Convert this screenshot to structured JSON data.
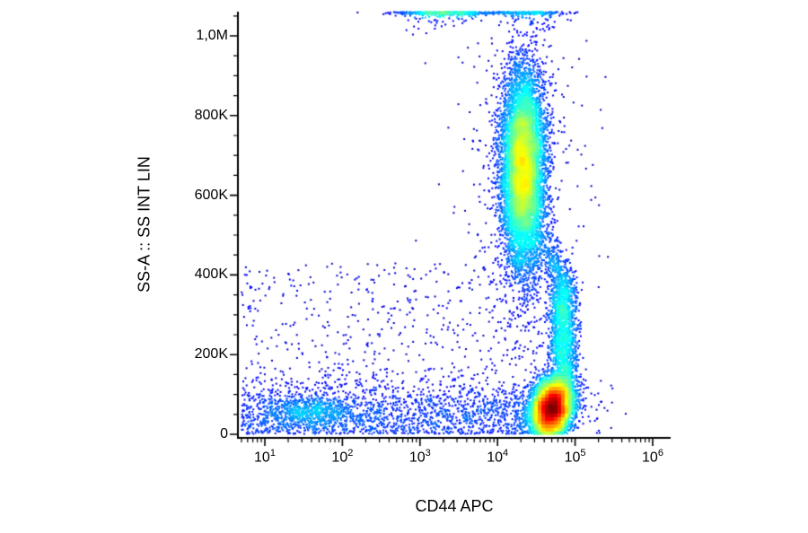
{
  "chart_data": {
    "type": "scatter",
    "subtype": "flow-cytometry-pseudocolor-density",
    "title": "",
    "xlabel": "CD44 APC",
    "ylabel": "SS-A :: SS INT LIN",
    "x_scale": "log",
    "x_tick_base": "10",
    "x_tick_exponents": [
      1,
      2,
      3,
      4,
      5,
      6
    ],
    "x_range_log10": [
      0.66,
      6.18
    ],
    "y_scale": "linear",
    "y_ticks": [
      {
        "label": "0",
        "value": 0
      },
      {
        "label": "200K",
        "value": 200000
      },
      {
        "label": "400K",
        "value": 400000
      },
      {
        "label": "600K",
        "value": 600000
      },
      {
        "label": "800K",
        "value": 800000
      },
      {
        "label": "1,0M",
        "value": 1000000
      }
    ],
    "y_minor_tick_step": 50000,
    "y_range": [
      0,
      1065000
    ],
    "grid": false,
    "legend": false,
    "colormap": "jet",
    "axis_color": "#000000",
    "background_color": "#ffffff",
    "seed": 20240601,
    "populations": [
      {
        "name": "ss-high-cd44-mid-main",
        "n": 9000,
        "x_log_mean": 4.33,
        "x_log_sd": 0.14,
        "y_mean": 670000,
        "y_sd": 125000
      },
      {
        "name": "ss-high-halo",
        "n": 380,
        "x_log_mean": 4.32,
        "x_log_sd": 0.45,
        "y_mean": 640000,
        "y_sd": 230000
      },
      {
        "name": "off-scale-top-left",
        "n": 620,
        "x_log_mean": 3.35,
        "x_log_sd": 0.3,
        "y_mean": 1090000,
        "y_sd": 30000
      },
      {
        "name": "off-scale-top-right",
        "n": 240,
        "x_log_mean": 4.4,
        "x_log_sd": 0.22,
        "y_mean": 1080000,
        "y_sd": 30000
      },
      {
        "name": "cd44-bright-ss-low-main",
        "n": 6800,
        "x_log_mean": 4.7,
        "x_log_sd": 0.13,
        "y_mean": 66000,
        "y_sd": 36000,
        "xy_slope": 60000
      },
      {
        "name": "connector-band",
        "n": 2300,
        "x_log_mean": 4.85,
        "x_log_sd": 0.09,
        "y_mean": 270000,
        "y_sd": 115000,
        "y_trunc_min": 95000,
        "y_trunc_max": 510000,
        "bend_y": 380000,
        "bend_shift": -0.3
      },
      {
        "name": "low-ss-spread-band",
        "n": 1700,
        "uniform_x": true,
        "x_log_min": 0.7,
        "x_log_max": 4.45,
        "y_mean": 52000,
        "y_sd": 46000
      },
      {
        "name": "cd44-low-left-cluster",
        "n": 550,
        "x_log_mean": 1.6,
        "x_log_sd": 0.28,
        "y_mean": 55000,
        "y_sd": 19000
      },
      {
        "name": "sparse-background",
        "n": 650,
        "uniform_x": true,
        "x_log_min": 0.7,
        "x_log_max": 4.6,
        "uniform_y": true,
        "y_min": 2000,
        "y_max": 430000
      },
      {
        "name": "sparse-right-low",
        "n": 70,
        "x_log_mean": 5.05,
        "x_log_sd": 0.28,
        "y_mean": 80000,
        "y_sd": 50000
      }
    ]
  }
}
